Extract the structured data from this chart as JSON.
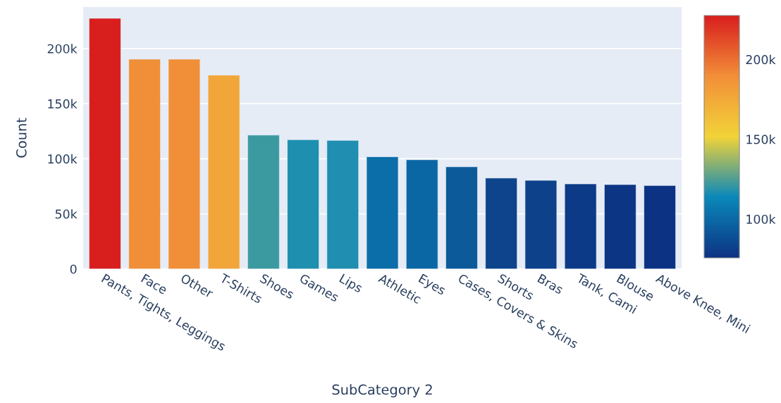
{
  "chart_data": {
    "type": "bar",
    "xlabel": "SubCategory 2",
    "ylabel": "Count",
    "categories": [
      "Pants, Tights, Leggings",
      "Face",
      "Other",
      "T-Shirts",
      "Shoes",
      "Games",
      "Lips",
      "Athletic",
      "Eyes",
      "Cases, Covers & Skins",
      "Shorts",
      "Bras",
      "Tank, Cami",
      "Blouse",
      "Above Knee, Mini"
    ],
    "values": [
      227500,
      190400,
      190400,
      175900,
      121500,
      117300,
      116700,
      101800,
      99100,
      92700,
      82500,
      80400,
      77200,
      76600,
      75700
    ],
    "colors": [
      "#d91e1e",
      "#f08f38",
      "#f08f38",
      "#f2a63a",
      "#3b9aa0",
      "#1f8fb0",
      "#1f8eb0",
      "#0b6ea8",
      "#0b67a3",
      "#0c5a99",
      "#0d448c",
      "#0d418a",
      "#0c3a86",
      "#0c3584",
      "#0c3383"
    ],
    "ylim": [
      0,
      237700
    ],
    "yticks": [
      {
        "value": 0,
        "label": "0"
      },
      {
        "value": 50000,
        "label": "50k"
      },
      {
        "value": 100000,
        "label": "100k"
      },
      {
        "value": 150000,
        "label": "150k"
      },
      {
        "value": 200000,
        "label": "200k"
      }
    ],
    "clim": [
      75700,
      227500
    ],
    "cticks": [
      {
        "value": 100000,
        "label": "100k"
      },
      {
        "value": 150000,
        "label": "150k"
      },
      {
        "value": 200000,
        "label": "200k"
      }
    ],
    "grid": "y",
    "legend": false
  }
}
